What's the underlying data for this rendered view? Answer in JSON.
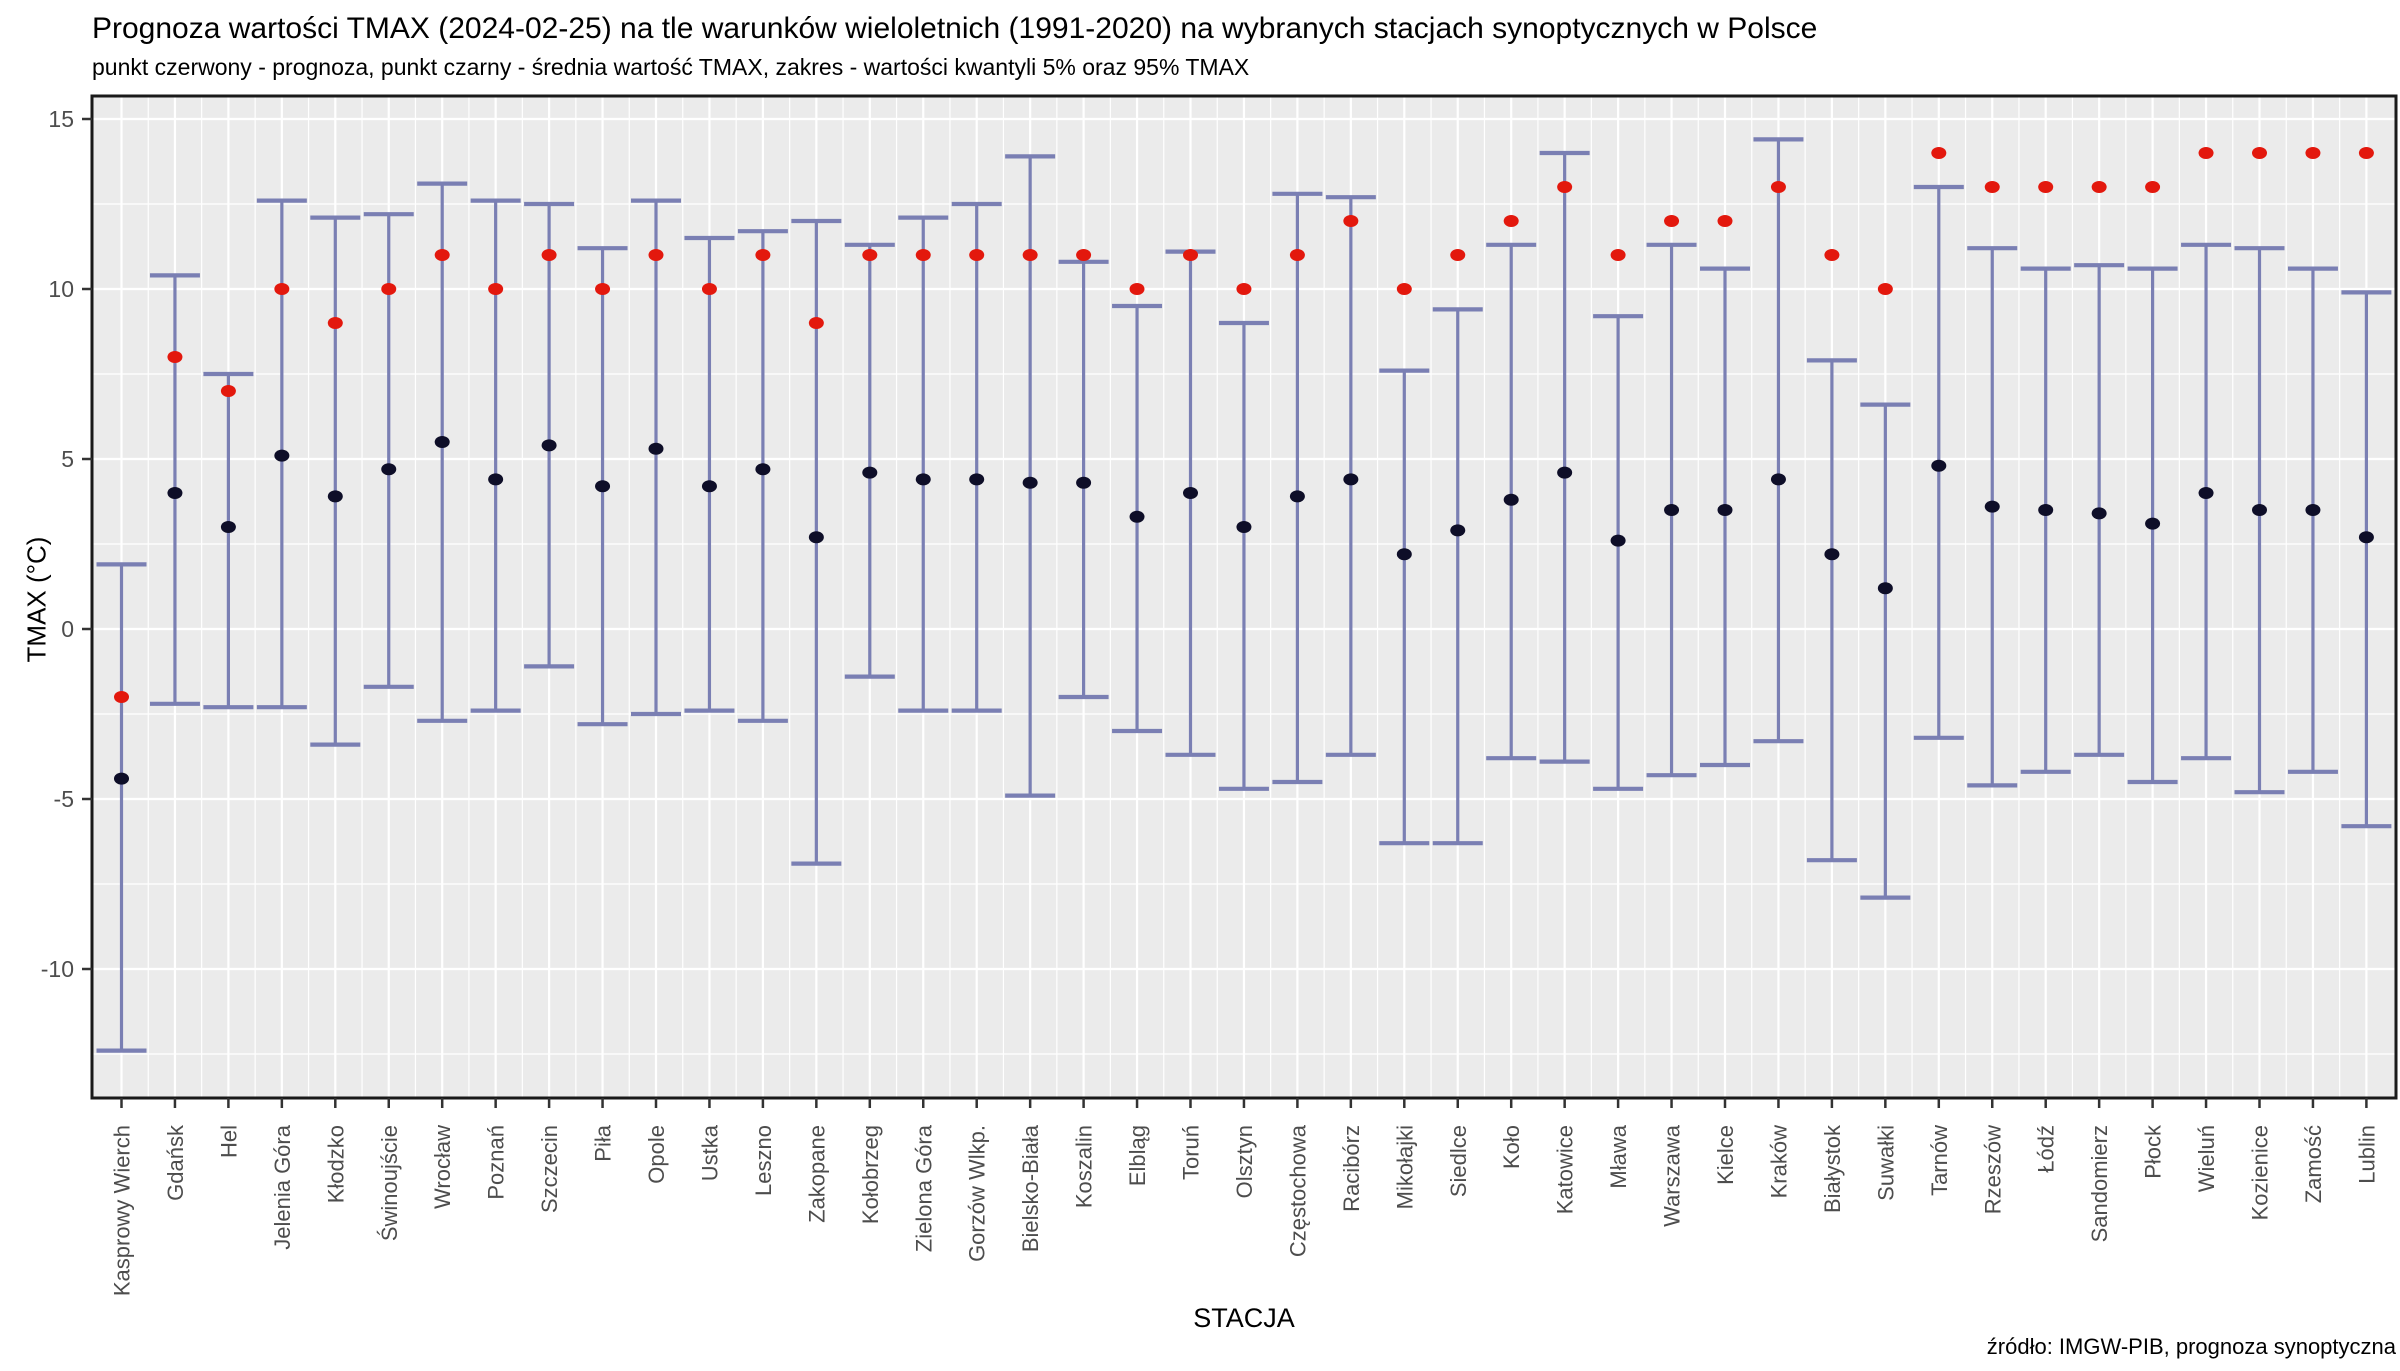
{
  "title": "Prognoza wartości TMAX (2024-02-25) na tle warunków wieloletnich (1991-2020) na wybranych stacjach synoptycznych w Polsce",
  "subtitle": "punkt czerwony - prognoza, punkt czarny - średnia wartość TMAX, zakres - wartości kwantyli 5% oraz 95% TMAX",
  "source": "źródło: IMGW-PIB, prognoza synoptyczna",
  "colors": {
    "forecast_point": "#e3180d",
    "mean_point": "#0e0e28",
    "range_bar": "#7a7fb3",
    "panel_bg": "#ebebeb",
    "grid": "#ffffff",
    "tick_text": "#4d4d4d",
    "axis_line": "#1a1a1a"
  },
  "chart_data": {
    "type": "scatter",
    "title": "Prognoza wartości TMAX (2024-02-25) na tle warunków wieloletnich (1991-2020) na wybranych stacjach synoptycznych w Polsce",
    "subtitle": "punkt czerwony - prognoza, punkt czarny - średnia wartość TMAX, zakres - wartości kwantyli 5% oraz 95% TMAX",
    "xlabel": "STACJA",
    "ylabel": "TMAX (°C)",
    "ylim": [
      -13.5,
      15.8
    ],
    "yticks": [
      15,
      10,
      5,
      0,
      -5,
      -10
    ],
    "yminor": [
      12.5,
      7.5,
      2.5,
      -2.5,
      -7.5,
      -12.5
    ],
    "grid": true,
    "legend": [
      {
        "marker": "red-point",
        "label": "prognoza"
      },
      {
        "marker": "black-point",
        "label": "średnia wartość TMAX"
      },
      {
        "marker": "range",
        "label": "wartości kwantyli 5% oraz 95% TMAX"
      }
    ],
    "stations": [
      {
        "name": "Kasprowy Wierch",
        "forecast": -2,
        "mean": -4.4,
        "q5": -12.4,
        "q95": 1.9
      },
      {
        "name": "Gdańsk",
        "forecast": 8,
        "mean": 4.0,
        "q5": -2.2,
        "q95": 10.4
      },
      {
        "name": "Hel",
        "forecast": 7,
        "mean": 3.0,
        "q5": -2.3,
        "q95": 7.5
      },
      {
        "name": "Jelenia Góra",
        "forecast": 10,
        "mean": 5.1,
        "q5": -2.3,
        "q95": 12.6
      },
      {
        "name": "Kłodzko",
        "forecast": 9,
        "mean": 3.9,
        "q5": -3.4,
        "q95": 12.1
      },
      {
        "name": "Świnoujście",
        "forecast": 10,
        "mean": 4.7,
        "q5": -1.7,
        "q95": 12.2
      },
      {
        "name": "Wrocław",
        "forecast": 11,
        "mean": 5.5,
        "q5": -2.7,
        "q95": 13.1
      },
      {
        "name": "Poznań",
        "forecast": 10,
        "mean": 4.4,
        "q5": -2.4,
        "q95": 12.6
      },
      {
        "name": "Szczecin",
        "forecast": 11,
        "mean": 5.4,
        "q5": -1.1,
        "q95": 12.5
      },
      {
        "name": "Piła",
        "forecast": 10,
        "mean": 4.2,
        "q5": -2.8,
        "q95": 11.2
      },
      {
        "name": "Opole",
        "forecast": 11,
        "mean": 5.3,
        "q5": -2.5,
        "q95": 12.6
      },
      {
        "name": "Ustka",
        "forecast": 10,
        "mean": 4.2,
        "q5": -2.4,
        "q95": 11.5
      },
      {
        "name": "Leszno",
        "forecast": 11,
        "mean": 4.7,
        "q5": -2.7,
        "q95": 11.7
      },
      {
        "name": "Zakopane",
        "forecast": 9,
        "mean": 2.7,
        "q5": -6.9,
        "q95": 12.0
      },
      {
        "name": "Kołobrzeg",
        "forecast": 11,
        "mean": 4.6,
        "q5": -1.4,
        "q95": 11.3
      },
      {
        "name": "Zielona Góra",
        "forecast": 11,
        "mean": 4.4,
        "q5": -2.4,
        "q95": 12.1
      },
      {
        "name": "Gorzów Wlkp.",
        "forecast": 11,
        "mean": 4.4,
        "q5": -2.4,
        "q95": 12.5
      },
      {
        "name": "Bielsko-Biała",
        "forecast": 11,
        "mean": 4.3,
        "q5": -4.9,
        "q95": 13.9
      },
      {
        "name": "Koszalin",
        "forecast": 11,
        "mean": 4.3,
        "q5": -2.0,
        "q95": 10.8
      },
      {
        "name": "Elbląg",
        "forecast": 10,
        "mean": 3.3,
        "q5": -3.0,
        "q95": 9.5
      },
      {
        "name": "Toruń",
        "forecast": 11,
        "mean": 4.0,
        "q5": -3.7,
        "q95": 11.1
      },
      {
        "name": "Olsztyn",
        "forecast": 10,
        "mean": 3.0,
        "q5": -4.7,
        "q95": 9.0
      },
      {
        "name": "Częstochowa",
        "forecast": 11,
        "mean": 3.9,
        "q5": -4.5,
        "q95": 12.8
      },
      {
        "name": "Racibórz",
        "forecast": 12,
        "mean": 4.4,
        "q5": -3.7,
        "q95": 12.7
      },
      {
        "name": "Mikołajki",
        "forecast": 10,
        "mean": 2.2,
        "q5": -6.3,
        "q95": 7.6
      },
      {
        "name": "Siedlce",
        "forecast": 11,
        "mean": 2.9,
        "q5": -6.3,
        "q95": 9.4
      },
      {
        "name": "Koło",
        "forecast": 12,
        "mean": 3.8,
        "q5": -3.8,
        "q95": 11.3
      },
      {
        "name": "Katowice",
        "forecast": 13,
        "mean": 4.6,
        "q5": -3.9,
        "q95": 14.0
      },
      {
        "name": "Mława",
        "forecast": 11,
        "mean": 2.6,
        "q5": -4.7,
        "q95": 9.2
      },
      {
        "name": "Warszawa",
        "forecast": 12,
        "mean": 3.5,
        "q5": -4.3,
        "q95": 11.3
      },
      {
        "name": "Kielce",
        "forecast": 12,
        "mean": 3.5,
        "q5": -4.0,
        "q95": 10.6
      },
      {
        "name": "Kraków",
        "forecast": 13,
        "mean": 4.4,
        "q5": -3.3,
        "q95": 14.4
      },
      {
        "name": "Białystok",
        "forecast": 11,
        "mean": 2.2,
        "q5": -6.8,
        "q95": 7.9
      },
      {
        "name": "Suwałki",
        "forecast": 10,
        "mean": 1.2,
        "q5": -7.9,
        "q95": 6.6
      },
      {
        "name": "Tarnów",
        "forecast": 14,
        "mean": 4.8,
        "q5": -3.2,
        "q95": 13.0
      },
      {
        "name": "Rzeszów",
        "forecast": 13,
        "mean": 3.6,
        "q5": -4.6,
        "q95": 11.2
      },
      {
        "name": "Łódź",
        "forecast": 13,
        "mean": 3.5,
        "q5": -4.2,
        "q95": 10.6
      },
      {
        "name": "Sandomierz",
        "forecast": 13,
        "mean": 3.4,
        "q5": -3.7,
        "q95": 10.7
      },
      {
        "name": "Płock",
        "forecast": 13,
        "mean": 3.1,
        "q5": -4.5,
        "q95": 10.6
      },
      {
        "name": "Wieluń",
        "forecast": 14,
        "mean": 4.0,
        "q5": -3.8,
        "q95": 11.3
      },
      {
        "name": "Kozienice",
        "forecast": 14,
        "mean": 3.5,
        "q5": -4.8,
        "q95": 11.2
      },
      {
        "name": "Zamość",
        "forecast": 14,
        "mean": 3.5,
        "q5": -4.2,
        "q95": 10.6
      },
      {
        "name": "Lublin",
        "forecast": 14,
        "mean": 2.7,
        "q5": -5.8,
        "q95": 9.9
      }
    ]
  }
}
